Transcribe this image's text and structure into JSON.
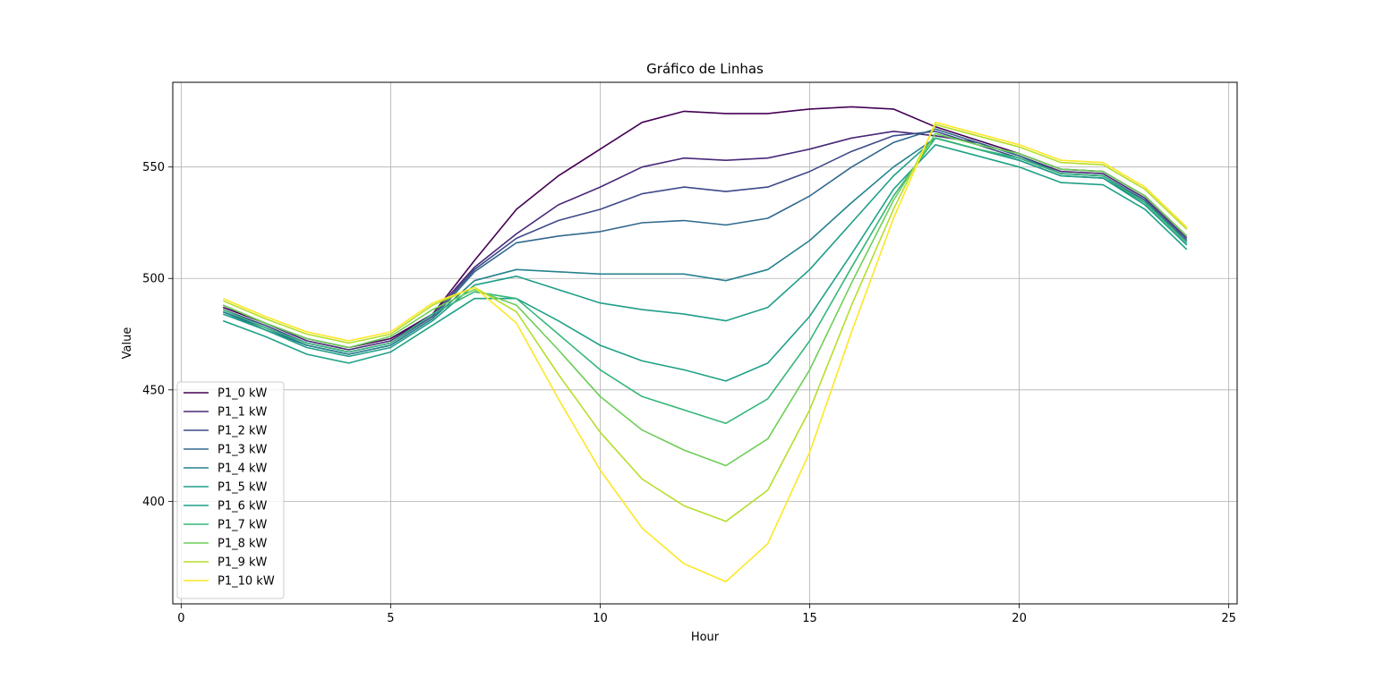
{
  "chart_data": {
    "type": "line",
    "title": "Gráfico de Linhas",
    "xlabel": "Hour",
    "ylabel": "Value",
    "xlim": [
      -0.2,
      25.2
    ],
    "ylim": [
      354,
      588
    ],
    "xticks": [
      0,
      5,
      10,
      15,
      20,
      25
    ],
    "yticks": [
      400,
      450,
      500,
      550
    ],
    "grid": true,
    "legend_position": "lower-left",
    "x": [
      1,
      2,
      3,
      4,
      5,
      6,
      7,
      8,
      9,
      10,
      11,
      12,
      13,
      14,
      15,
      16,
      17,
      18,
      19,
      20,
      21,
      22,
      23,
      24
    ],
    "series": [
      {
        "name": "P1_0 kW",
        "color": "#440154",
        "values": [
          487,
          480,
          473,
          469,
          473,
          484,
          508,
          531,
          546,
          558,
          570,
          575,
          574,
          574,
          576,
          577,
          576,
          568,
          562,
          556,
          549,
          548,
          537,
          519
        ]
      },
      {
        "name": "P1_1 kW",
        "color": "#482878",
        "values": [
          488,
          480,
          472,
          468,
          472,
          484,
          505,
          520,
          533,
          541,
          550,
          554,
          553,
          554,
          558,
          563,
          566,
          564,
          561,
          555,
          548,
          547,
          536,
          518
        ]
      },
      {
        "name": "P1_2 kW",
        "color": "#3e4989",
        "values": [
          486,
          479,
          471,
          467,
          471,
          483,
          504,
          518,
          526,
          531,
          538,
          541,
          539,
          541,
          548,
          557,
          564,
          566,
          560,
          554,
          547,
          546,
          535,
          517
        ]
      },
      {
        "name": "P1_3 kW",
        "color": "#31688e",
        "values": [
          485,
          478,
          470,
          466,
          470,
          482,
          503,
          516,
          519,
          521,
          525,
          526,
          524,
          527,
          537,
          550,
          561,
          567,
          561,
          555,
          547,
          546,
          535,
          517
        ]
      },
      {
        "name": "P1_4 kW",
        "color": "#26828e",
        "values": [
          485,
          477,
          470,
          466,
          470,
          482,
          499,
          504,
          503,
          502,
          502,
          502,
          499,
          504,
          517,
          534,
          550,
          563,
          558,
          553,
          546,
          545,
          534,
          516
        ]
      },
      {
        "name": "P1_5 kW",
        "color": "#1f9e89",
        "values": [
          484,
          477,
          469,
          465,
          469,
          481,
          497,
          501,
          495,
          489,
          486,
          484,
          481,
          487,
          504,
          525,
          546,
          563,
          558,
          553,
          546,
          545,
          533,
          515
        ]
      },
      {
        "name": "P1_6 kW",
        "color": "#1fa187",
        "values": [
          481,
          474,
          466,
          462,
          467,
          479,
          491,
          491,
          481,
          470,
          463,
          459,
          454,
          462,
          483,
          511,
          540,
          560,
          555,
          550,
          543,
          542,
          531,
          513
        ]
      },
      {
        "name": "P1_7 kW",
        "color": "#35b779",
        "values": [
          486,
          478,
          471,
          467,
          471,
          484,
          494,
          491,
          475,
          459,
          447,
          441,
          435,
          446,
          472,
          505,
          537,
          563,
          558,
          554,
          547,
          546,
          534,
          516
        ]
      },
      {
        "name": "P1_8 kW",
        "color": "#6ece58",
        "values": [
          488,
          480,
          473,
          469,
          474,
          486,
          495,
          488,
          468,
          447,
          432,
          423,
          416,
          428,
          459,
          498,
          535,
          565,
          560,
          556,
          549,
          548,
          537,
          519
        ]
      },
      {
        "name": "P1_9 kW",
        "color": "#b5de2b",
        "values": [
          490,
          482,
          475,
          471,
          475,
          488,
          496,
          485,
          457,
          431,
          410,
          398,
          391,
          405,
          441,
          488,
          531,
          569,
          564,
          559,
          552,
          551,
          540,
          522
        ]
      },
      {
        "name": "P1_10 kW",
        "color": "#fde725",
        "values": [
          491,
          483,
          476,
          472,
          476,
          489,
          496,
          480,
          446,
          414,
          388,
          372,
          364,
          381,
          422,
          476,
          527,
          570,
          565,
          560,
          553,
          552,
          541,
          523
        ]
      }
    ]
  }
}
